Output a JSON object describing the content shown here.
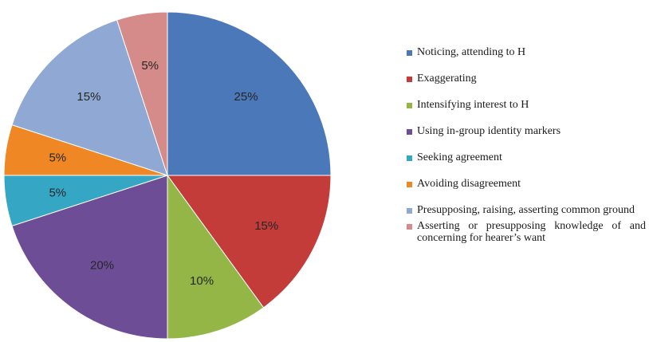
{
  "chart_data": {
    "type": "pie",
    "start": "top",
    "direction": "clockwise",
    "categories": [
      "Noticing, attending to H",
      "Exaggerating",
      "Intensifying interest to H",
      "Using in-group identity markers",
      "Seeking agreement",
      "Avoiding disagreement",
      "Presupposing, raising, asserting common ground",
      "Asserting or presupposing knowledge of and concerning for hearer’s want"
    ],
    "values": [
      25,
      15,
      10,
      20,
      5,
      5,
      15,
      5
    ],
    "data_labels": [
      "25%",
      "15%",
      "10%",
      "20%",
      "5%",
      "5%",
      "15%",
      "5%"
    ],
    "colors": [
      "#4a78b9",
      "#c33c3a",
      "#94b646",
      "#6d4e96",
      "#35a6c3",
      "#ef8725",
      "#90a9d4",
      "#d58b8a"
    ],
    "legend": {
      "position": "right"
    },
    "title": ""
  }
}
